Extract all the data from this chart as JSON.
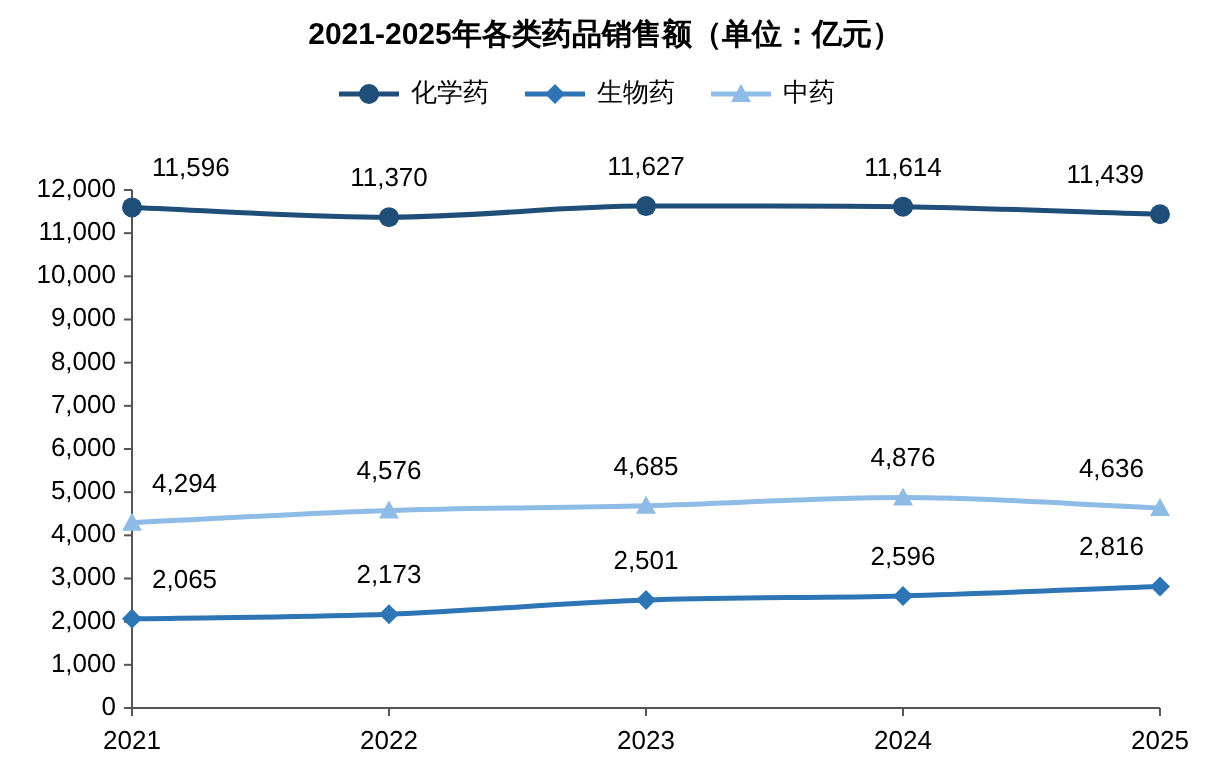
{
  "chart_data": {
    "type": "line",
    "title": "2021-2025年各类药品销售额（单位：亿元）",
    "categories": [
      "2021",
      "2022",
      "2023",
      "2024",
      "2025"
    ],
    "series": [
      {
        "name": "化学药",
        "color": "#1f4e79",
        "marker": "circle",
        "values": [
          11596,
          11370,
          11627,
          11614,
          11439
        ],
        "value_labels": [
          "11,596",
          "11,370",
          "11,627",
          "11,614",
          "11,439"
        ]
      },
      {
        "name": "生物药",
        "color": "#2e75b6",
        "marker": "diamond",
        "values": [
          2065,
          2173,
          2501,
          2596,
          2816
        ],
        "value_labels": [
          "2,065",
          "2,173",
          "2,501",
          "2,596",
          "2,816"
        ]
      },
      {
        "name": "中药",
        "color": "#8fbce6",
        "marker": "triangle",
        "values": [
          4294,
          4576,
          4685,
          4876,
          4636
        ],
        "value_labels": [
          "4,294",
          "4,576",
          "4,685",
          "4,876",
          "4,636"
        ]
      }
    ],
    "ylim": [
      0,
      12000
    ],
    "yticks": [
      0,
      {
        "value": 1000,
        "label": "1,000"
      },
      {
        "value": 2000,
        "label": "2,000"
      },
      {
        "value": 3000,
        "label": "3,000"
      },
      {
        "value": 4000,
        "label": "4,000"
      },
      {
        "value": 5000,
        "label": "5,000"
      },
      {
        "value": 6000,
        "label": "6,000"
      },
      {
        "value": 7000,
        "label": "7,000"
      },
      {
        "value": 8000,
        "label": "8,000"
      },
      {
        "value": 9000,
        "label": "9,000"
      },
      {
        "value": 10000,
        "label": "10,000"
      },
      {
        "value": 11000,
        "label": "11,000"
      },
      {
        "value": 12000,
        "label": "12,000"
      }
    ],
    "grid": false,
    "legend": "top",
    "line_style": "solid"
  }
}
